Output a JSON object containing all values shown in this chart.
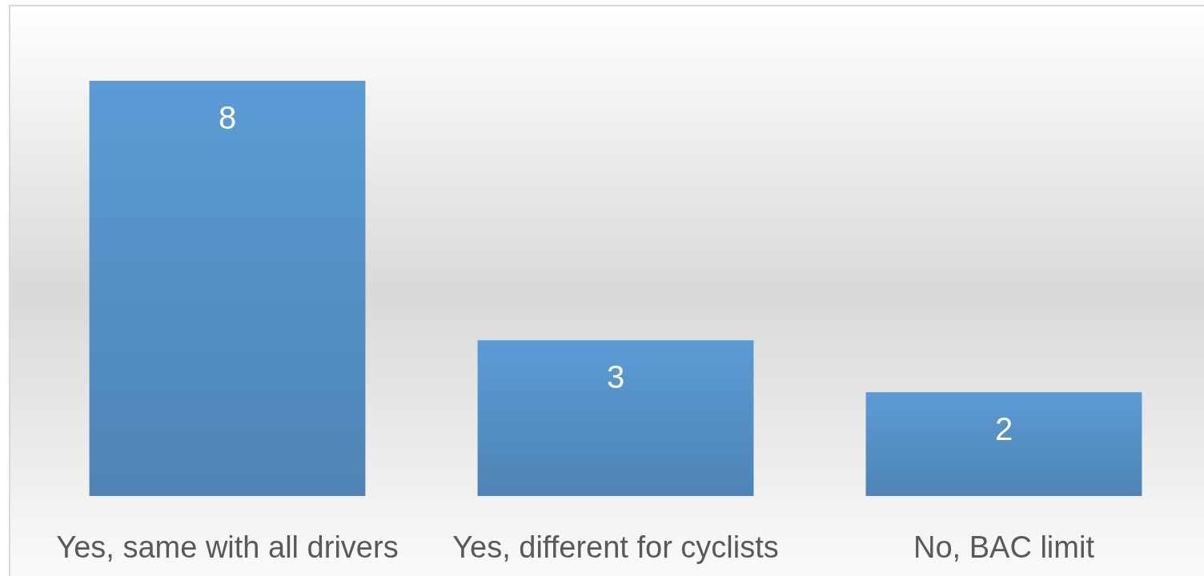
{
  "chart_data": {
    "type": "bar",
    "categories": [
      "Yes, same with all drivers",
      "Yes, different for cyclists",
      "No, BAC limit"
    ],
    "values": [
      8,
      3,
      2
    ],
    "color": "#5b9bd5",
    "data_labels": true
  }
}
